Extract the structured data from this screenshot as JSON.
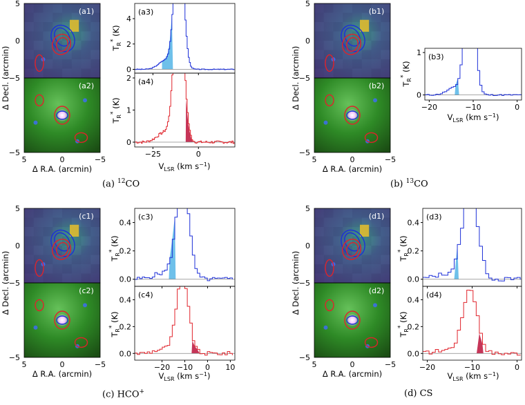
{
  "panels": {
    "a": {
      "caption": {
        "letter": "(a)",
        "sup": "12",
        "species": "CO"
      },
      "map_top_label": "(a1)",
      "map_bottom_label": "(a2)",
      "spec_top_label": "(a3)",
      "spec_bottom_label": "(a4)",
      "spec_top_yticks": [
        "0",
        "2",
        "4"
      ],
      "spec_bottom_yticks": [
        "0",
        "1",
        "2"
      ],
      "spec_xticks": [
        "−25",
        "0"
      ]
    },
    "b": {
      "caption": {
        "letter": "(b)",
        "sup": "13",
        "species": "CO"
      },
      "map_top_label": "(b1)",
      "map_bottom_label": "(b2)",
      "spec_label": "(b3)",
      "spec_yticks": [
        "0",
        "1"
      ],
      "spec_xticks": [
        "−20",
        "−10",
        "0"
      ]
    },
    "c": {
      "caption": {
        "letter": "(c)",
        "species": "HCO",
        "sup": "+"
      },
      "map_top_label": "(c1)",
      "map_bottom_label": "(c2)",
      "spec_top_label": "(c3)",
      "spec_bottom_label": "(c4)",
      "spec_yticks": [
        "0.0",
        "0.2",
        "0.4"
      ],
      "spec_xticks": [
        "−20",
        "−10",
        "0",
        "10"
      ]
    },
    "d": {
      "caption": {
        "letter": "(d)",
        "species": "CS"
      },
      "map_top_label": "(d1)",
      "map_bottom_label": "(d2)",
      "spec_top_label": "(d3)",
      "spec_bottom_label": "(d4)",
      "spec_yticks": [
        "0.0",
        "0.2",
        "0.4"
      ],
      "spec_xticks": [
        "−20",
        "−10",
        "0"
      ]
    }
  },
  "axes": {
    "map_xlabel": "Δ R.A. (arcmin)",
    "map_ylabel": "Δ Decl. (arcmin)",
    "map_xticks": [
      "5",
      "0",
      "−5"
    ],
    "map_yticks": [
      "5",
      "0",
      "−5"
    ],
    "spec_xlabel": "V",
    "spec_xlabel_sub": "LSR",
    "spec_xlabel_unit": " (km s",
    "spec_xlabel_unit_sup": "−1",
    "spec_xlabel_end": ")",
    "spec_ylabel": "T",
    "spec_ylabel_sub": "R",
    "spec_ylabel_sup": "*",
    "spec_ylabel_unit": " (K)"
  },
  "colors": {
    "co_blue": "#1c2fd8",
    "co_red": "#e0222a",
    "blue_fill": "#6ec0ea",
    "red_fill": "#c63558",
    "map_purple": "#4b3f7e",
    "map_green": "#2b7a1e"
  },
  "chart_data": [
    {
      "type": "line",
      "panel": "a3",
      "series": [
        {
          "values_note": "blue spectrum, peak truncated above 4"
        }
      ],
      "xlim": [
        -35,
        20
      ],
      "ylim": [
        -0.3,
        5
      ]
    },
    {
      "type": "line",
      "panel": "a4",
      "xlim": [
        -35,
        20
      ],
      "ylim": [
        -0.2,
        2.1
      ]
    },
    {
      "type": "line",
      "panel": "b3",
      "xlim": [
        -21,
        1
      ],
      "ylim": [
        -0.1,
        1.1
      ]
    },
    {
      "type": "line",
      "panel": "c3",
      "xlim": [
        -32,
        12
      ],
      "ylim": [
        -0.05,
        0.5
      ]
    },
    {
      "type": "line",
      "panel": "c4",
      "xlim": [
        -32,
        12
      ],
      "ylim": [
        -0.05,
        0.5
      ]
    },
    {
      "type": "line",
      "panel": "d3",
      "xlim": [
        -21,
        1
      ],
      "ylim": [
        -0.05,
        0.5
      ]
    },
    {
      "type": "line",
      "panel": "d4",
      "xlim": [
        -21,
        1
      ],
      "ylim": [
        -0.05,
        0.5
      ]
    }
  ]
}
